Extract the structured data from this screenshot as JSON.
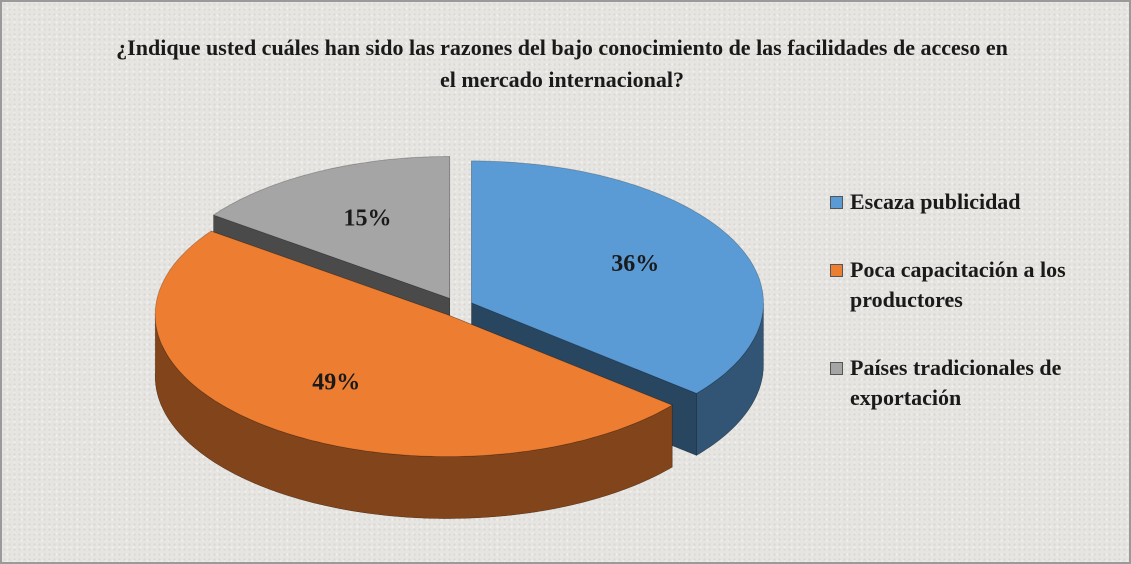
{
  "chart_data": {
    "type": "pie",
    "title": "¿Indique usted cuáles han sido las razones del bajo conocimiento de las facilidades de acceso en el mercado internacional?",
    "categories": [
      "Escaza publicidad",
      "Poca capacitación a los productores",
      "Países tradicionales de exportación"
    ],
    "values": [
      36,
      49,
      15
    ],
    "value_labels": [
      "36%",
      "49%",
      "15%"
    ],
    "colors": [
      "#5b9bd5",
      "#ed7d31",
      "#a5a5a5"
    ],
    "legend": "right"
  }
}
